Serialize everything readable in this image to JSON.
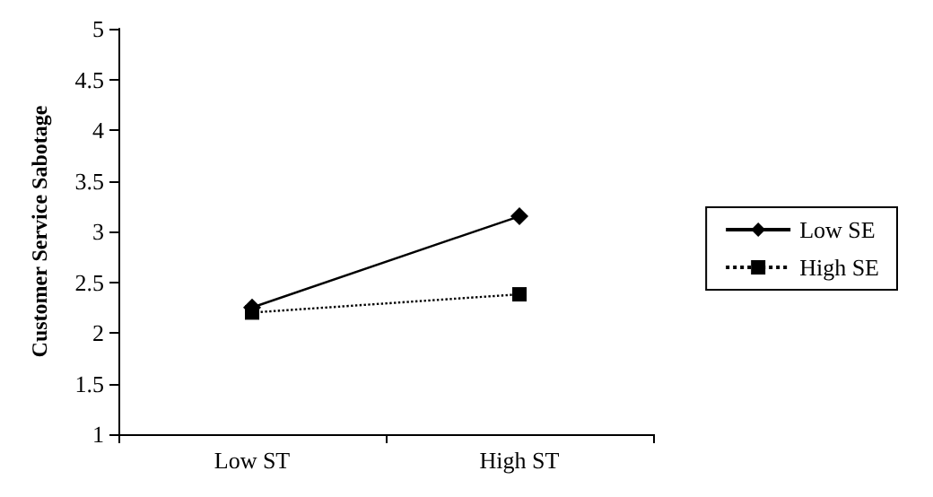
{
  "chart_data": {
    "type": "line",
    "ylabel": "Customer Service Sabotage",
    "categories": [
      "Low ST",
      "High ST"
    ],
    "series": [
      {
        "name": "Low SE",
        "color": "#000000",
        "values": [
          2.25,
          3.15
        ],
        "marker": "diamond",
        "line_style": "solid"
      },
      {
        "name": "High SE",
        "color": "#000000",
        "values": [
          2.2,
          2.38
        ],
        "marker": "square",
        "line_style": "dotted"
      }
    ],
    "ylim": [
      1,
      5
    ],
    "yticks": [
      1,
      1.5,
      2,
      2.5,
      3,
      3.5,
      4,
      4.5,
      5
    ],
    "grid": false,
    "legend": "right"
  }
}
